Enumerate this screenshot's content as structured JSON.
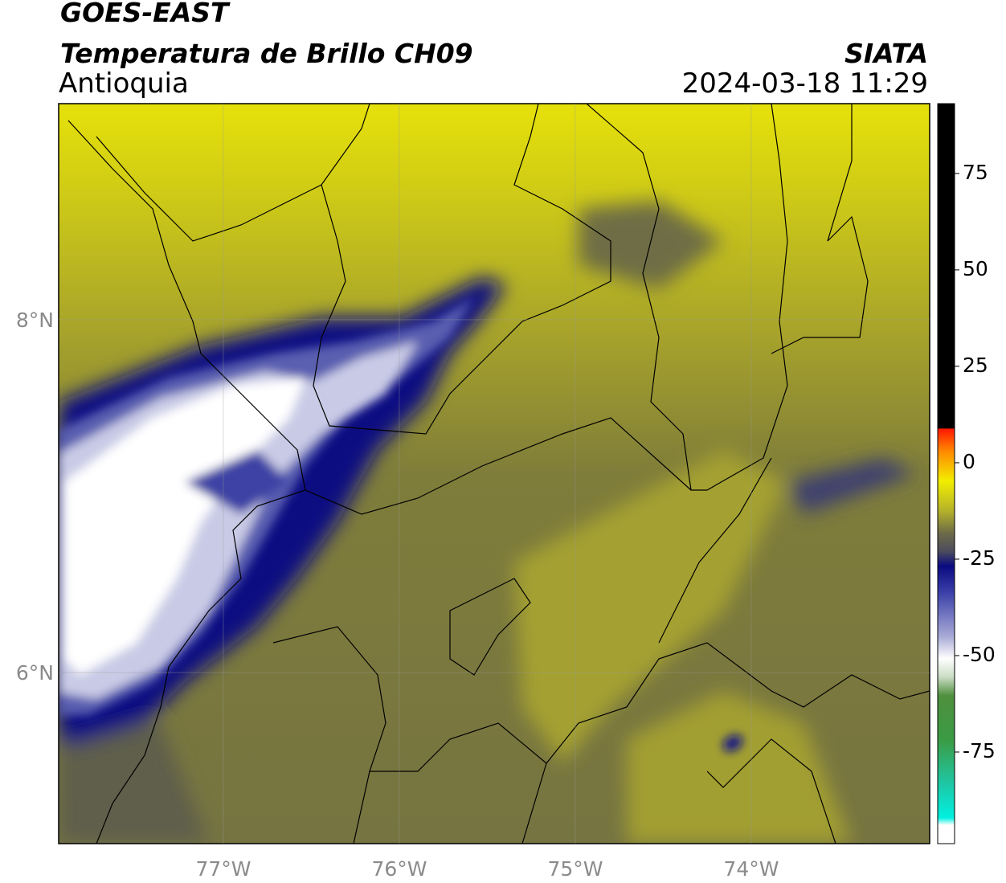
{
  "chart_data": {
    "type": "map",
    "title": "GOES-EAST",
    "subtitle": "Temperatura de Brillo CH09",
    "region": "Antioquia",
    "agency": "SIATA",
    "datetime": "2024-03-18 11:29",
    "xlim": [
      -77.936,
      -72.986
    ],
    "ylim": [
      5.03,
      9.225
    ],
    "xticks": [
      {
        "value": -77,
        "label": "77°W"
      },
      {
        "value": -76,
        "label": "76°W"
      },
      {
        "value": -75,
        "label": "75°W"
      },
      {
        "value": -74,
        "label": "74°W"
      }
    ],
    "yticks": [
      {
        "value": 6,
        "label": "6°N"
      },
      {
        "value": 8,
        "label": "8°N"
      }
    ],
    "grid": true,
    "colorbar": {
      "lim": [
        -98.75,
        93.1
      ],
      "ticks": [
        -75,
        -50,
        -25,
        0,
        25,
        50,
        75
      ]
    }
  }
}
